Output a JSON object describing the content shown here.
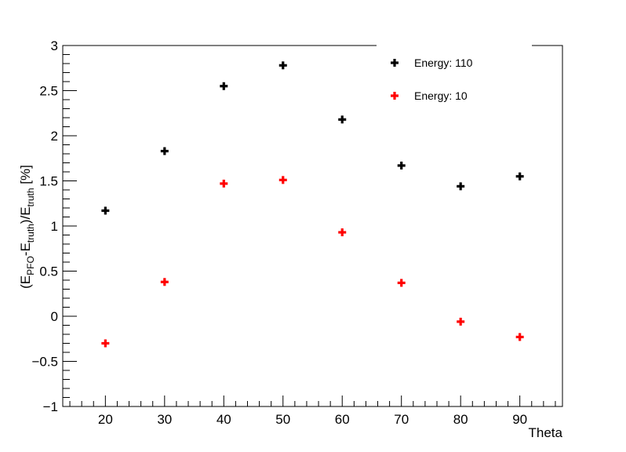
{
  "chart_data": {
    "type": "scatter",
    "xlabel": "Theta",
    "ylabel": {
      "base": "(E",
      "sub1": "PFO",
      "mid": "-E",
      "sub2": "truth",
      "mid2": ")/E",
      "sub3": "truth",
      "tail": " [%]"
    },
    "xlim": [
      12.8,
      97.2
    ],
    "ylim": [
      -1,
      3
    ],
    "xticks": [
      "20",
      "30",
      "40",
      "50",
      "60",
      "70",
      "80",
      "90"
    ],
    "yticks": [
      "−1",
      "−0.5",
      "0",
      "0.5",
      "1",
      "1.5",
      "2",
      "2.5",
      "3"
    ],
    "xtick_values": [
      20,
      30,
      40,
      50,
      60,
      70,
      80,
      90
    ],
    "ytick_values": [
      -1,
      -0.5,
      0,
      0.5,
      1,
      1.5,
      2,
      2.5,
      3
    ],
    "grid": false,
    "legend_position": "top-right",
    "series": [
      {
        "name": "Energy: 110",
        "color": "#000000",
        "x": [
          20,
          30,
          40,
          50,
          60,
          70,
          80,
          90
        ],
        "y": [
          1.17,
          1.83,
          2.55,
          2.78,
          2.18,
          1.67,
          1.44,
          1.55
        ]
      },
      {
        "name": "Energy: 10",
        "color": "#ff0000",
        "x": [
          20,
          30,
          40,
          50,
          60,
          70,
          80,
          90
        ],
        "y": [
          -0.3,
          0.38,
          1.47,
          1.51,
          0.93,
          0.37,
          -0.06,
          -0.23
        ]
      }
    ]
  }
}
